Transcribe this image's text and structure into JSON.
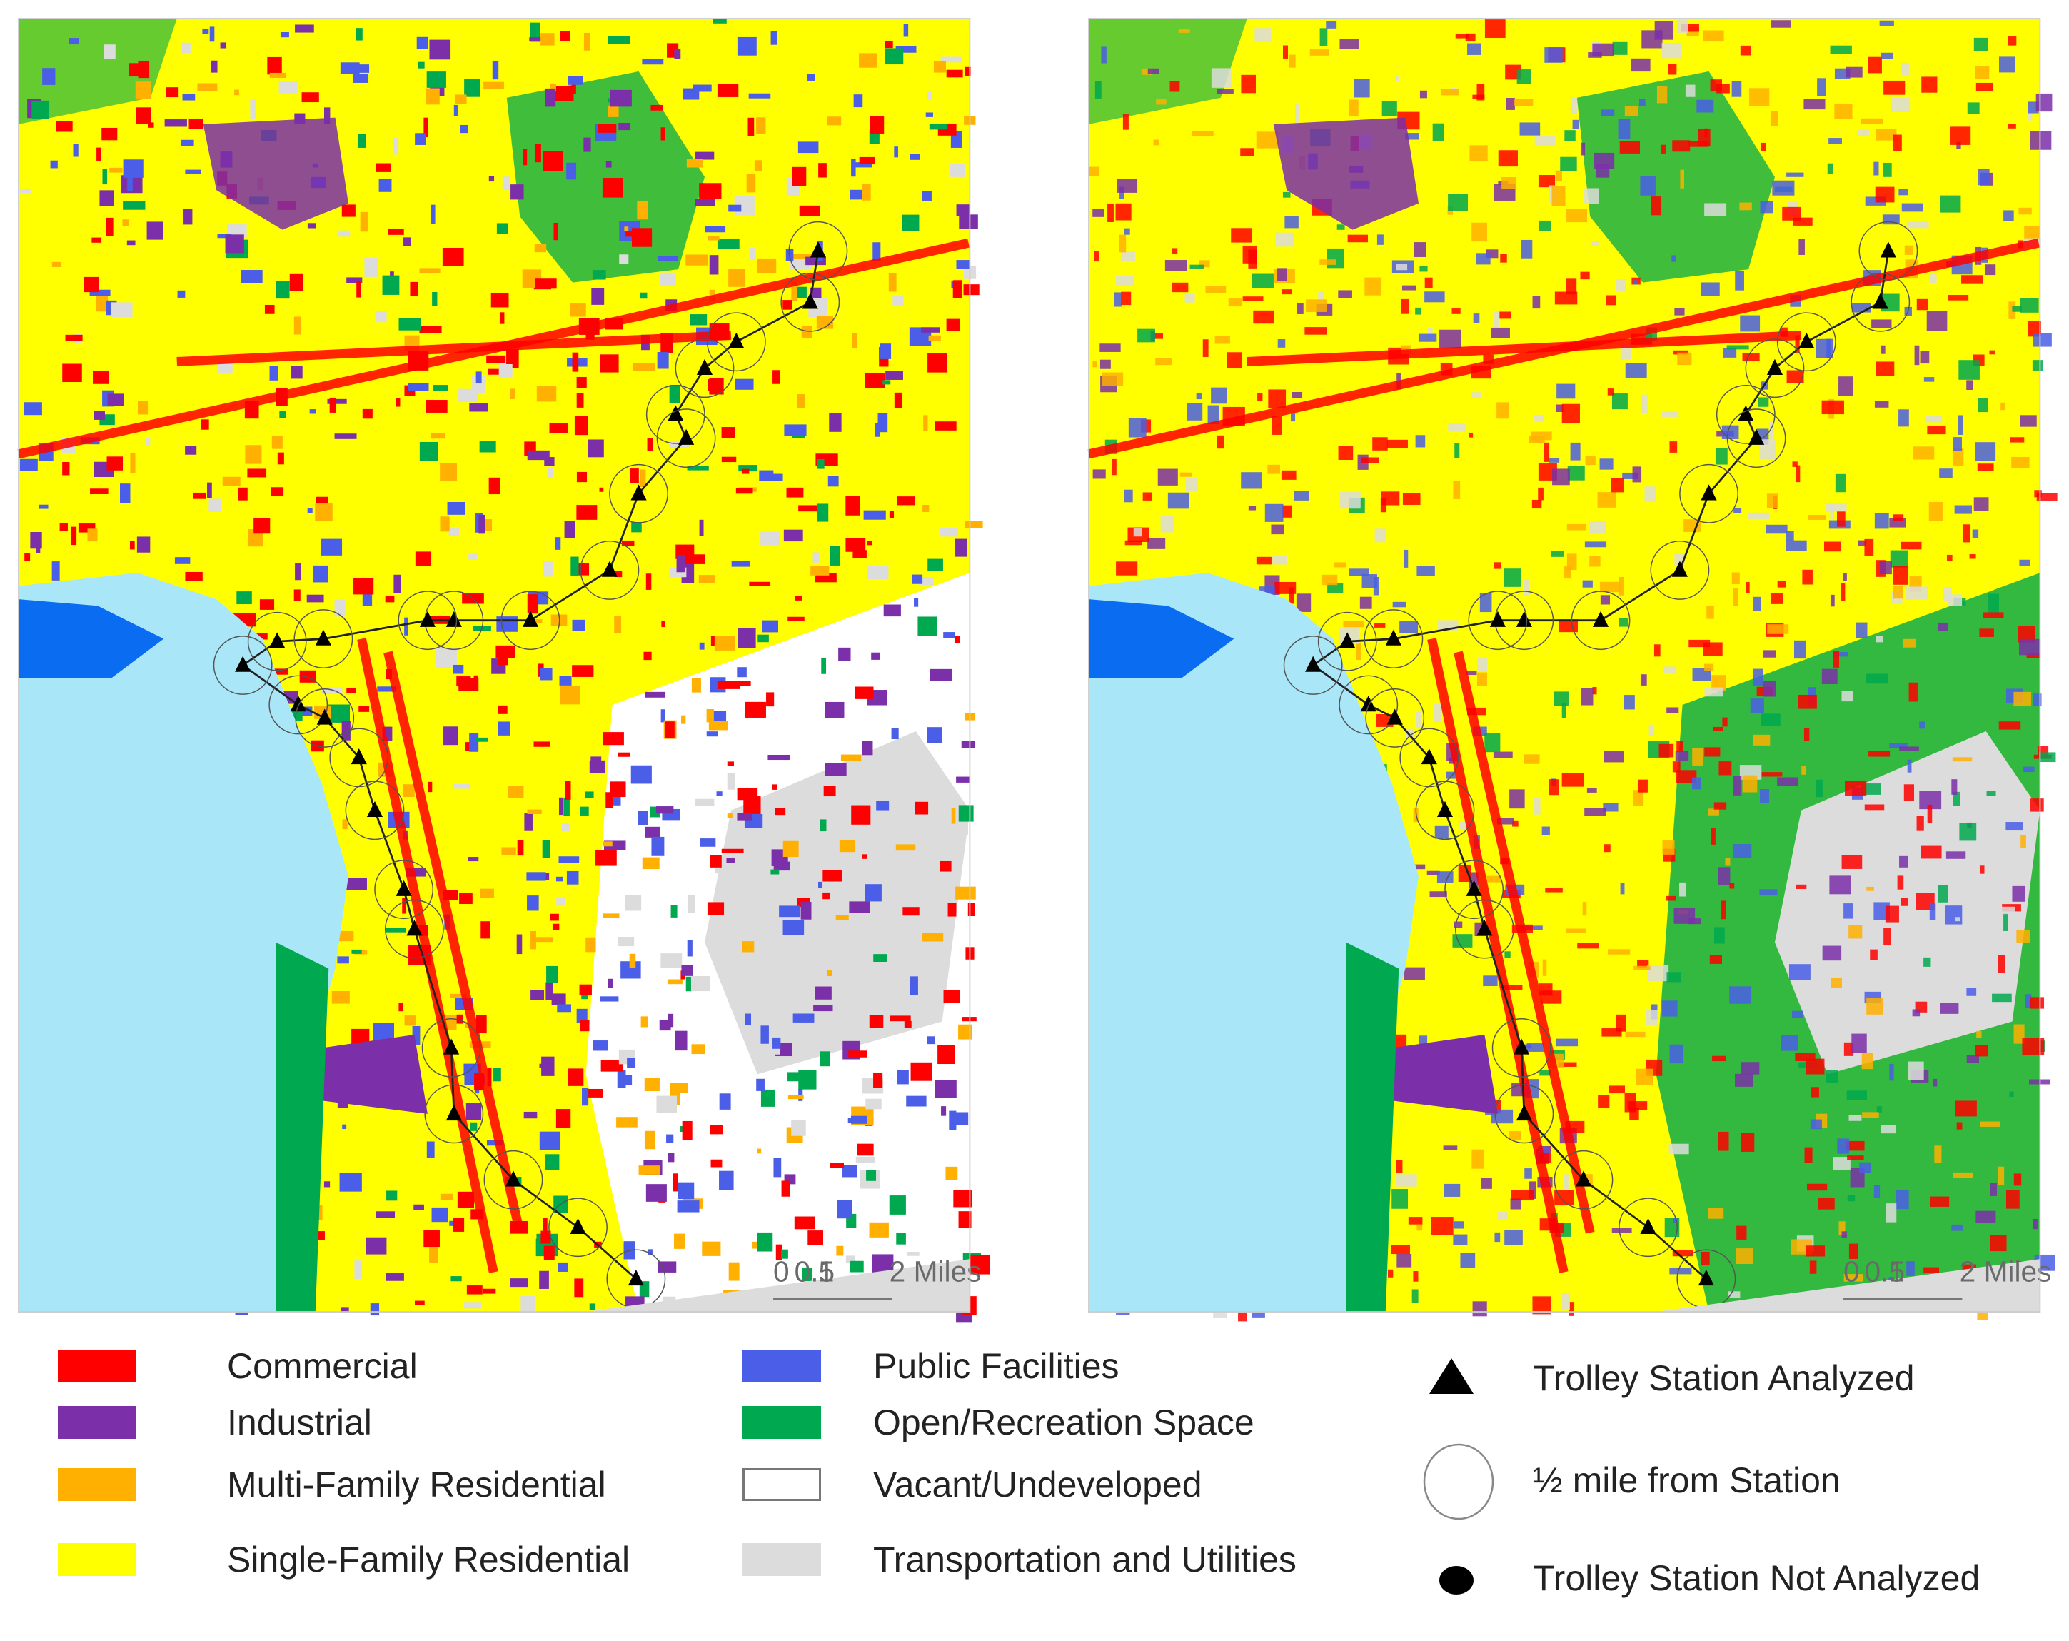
{
  "maps": [
    {
      "scale_bar": {
        "labels": [
          "0",
          "0.5",
          "1",
          "2 Miles"
        ]
      }
    },
    {
      "scale_bar": {
        "labels": [
          "0",
          "0.5",
          "1",
          "2 Miles"
        ]
      }
    }
  ],
  "legend": {
    "land_use": [
      {
        "label": "Commercial",
        "color": "#ff0000"
      },
      {
        "label": "Industrial",
        "color": "#7b2fa8"
      },
      {
        "label": "Multi-Family Residential",
        "color": "#ffb000"
      },
      {
        "label": "Single-Family Residential",
        "color": "#ffff00"
      },
      {
        "label": "Public Facilities",
        "color": "#4a5ee8"
      },
      {
        "label": "Open/Recreation Space",
        "color": "#00a84f"
      },
      {
        "label": "Vacant/Undeveloped",
        "color": "#ffffff"
      },
      {
        "label": "Transportation and Utilities",
        "color": "#dcdcdc"
      }
    ],
    "symbols": [
      {
        "label": "Trolley Station Analyzed"
      },
      {
        "label": "½ mile from Station"
      },
      {
        "label": "Trolley Station Not Analyzed"
      }
    ]
  }
}
